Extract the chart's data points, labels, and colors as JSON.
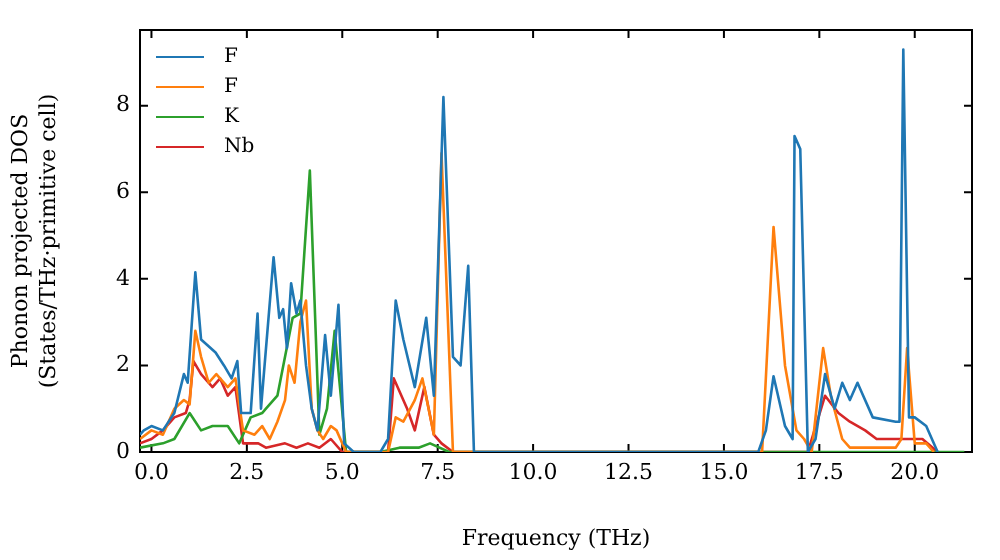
{
  "chart_data": {
    "type": "line",
    "xlabel": "Frequency (THz)",
    "ylabel": "Phonon projected DOS\n(States/THz·primitive cell)",
    "xlim": [
      -0.3,
      21.5
    ],
    "ylim": [
      0,
      9.75
    ],
    "xticks": [
      {
        "value": 0,
        "label": "0.0"
      },
      {
        "value": 2.5,
        "label": "2.5"
      },
      {
        "value": 5,
        "label": "5.0"
      },
      {
        "value": 7.5,
        "label": "7.5"
      },
      {
        "value": 10,
        "label": "10.0"
      },
      {
        "value": 12.5,
        "label": "12.5"
      },
      {
        "value": 15,
        "label": "15.0"
      },
      {
        "value": 17.5,
        "label": "17.5"
      },
      {
        "value": 20,
        "label": "20.0"
      }
    ],
    "yticks": [
      0,
      2,
      4,
      6,
      8
    ],
    "legend": "top left",
    "grid": false,
    "marker": "none",
    "line_style": "solid",
    "series": [
      {
        "name": "F",
        "color": "#1f77b4",
        "x": [
          -0.3,
          -0.2,
          0.0,
          0.3,
          0.6,
          0.85,
          0.95,
          1.15,
          1.3,
          1.68,
          1.9,
          2.1,
          2.25,
          2.35,
          2.6,
          2.78,
          2.87,
          3.2,
          3.35,
          3.45,
          3.55,
          3.66,
          3.8,
          3.9,
          4.05,
          4.2,
          4.35,
          4.55,
          4.7,
          4.9,
          5.05,
          5.3,
          6.0,
          6.2,
          6.4,
          6.6,
          6.9,
          7.2,
          7.4,
          7.65,
          7.9,
          8.1,
          8.3,
          8.45,
          15.9,
          16.1,
          16.3,
          16.6,
          16.8,
          16.85,
          17.0,
          17.2,
          17.4,
          17.65,
          17.9,
          18.1,
          18.3,
          18.5,
          18.6,
          18.9,
          19.5,
          19.6,
          19.7,
          19.85,
          20.0,
          20.3,
          20.6
        ],
        "values": [
          0.4,
          0.5,
          0.6,
          0.5,
          0.9,
          1.8,
          1.6,
          4.15,
          2.6,
          2.3,
          2.0,
          1.7,
          2.1,
          0.9,
          0.9,
          3.2,
          1.0,
          4.5,
          3.1,
          3.3,
          2.4,
          3.9,
          3.2,
          3.5,
          2.0,
          1.0,
          0.5,
          2.7,
          1.3,
          3.4,
          0.2,
          0,
          0,
          0.3,
          3.5,
          2.6,
          1.5,
          3.1,
          1.3,
          8.2,
          2.2,
          2.0,
          4.3,
          0,
          0,
          0.5,
          1.75,
          0.6,
          0.3,
          7.3,
          7.0,
          0,
          0.3,
          1.8,
          1.0,
          1.6,
          1.2,
          1.6,
          1.4,
          0.8,
          0.7,
          0.7,
          9.3,
          0.8,
          0.8,
          0.6,
          0
        ]
      },
      {
        "name": "F",
        "color": "#ff7f0e",
        "x": [
          -0.3,
          0.0,
          0.3,
          0.6,
          0.85,
          1.0,
          1.15,
          1.3,
          1.5,
          1.7,
          2.0,
          2.2,
          2.4,
          2.7,
          2.9,
          3.1,
          3.3,
          3.5,
          3.6,
          3.75,
          3.9,
          4.05,
          4.2,
          4.35,
          4.5,
          4.7,
          4.85,
          5.1,
          6.0,
          6.2,
          6.4,
          6.6,
          6.9,
          7.1,
          7.4,
          7.6,
          7.9,
          10.0,
          16.0,
          16.3,
          16.6,
          16.9,
          17.1,
          17.3,
          17.6,
          17.8,
          18.1,
          18.3,
          19.5,
          19.65,
          19.8,
          20.0,
          20.3,
          20.5
        ],
        "values": [
          0.3,
          0.5,
          0.4,
          1.0,
          1.2,
          1.1,
          2.8,
          2.2,
          1.6,
          1.8,
          1.5,
          1.7,
          0.5,
          0.4,
          0.6,
          0.3,
          0.7,
          1.2,
          2.0,
          1.6,
          3.0,
          3.5,
          1.0,
          0.5,
          0.3,
          0.6,
          0.5,
          0,
          0,
          0,
          0.8,
          0.7,
          1.2,
          1.7,
          0.4,
          6.9,
          0,
          0,
          0,
          5.2,
          2.0,
          0.5,
          0.3,
          0,
          2.4,
          1.3,
          0.3,
          0.1,
          0.1,
          0.3,
          2.4,
          0.2,
          0.2,
          0
        ]
      },
      {
        "name": "K",
        "color": "#2ca02c",
        "x": [
          -0.3,
          0.3,
          0.6,
          1.0,
          1.3,
          1.6,
          2.0,
          2.3,
          2.6,
          2.9,
          3.0,
          3.3,
          3.7,
          3.9,
          4.15,
          4.4,
          4.6,
          4.8,
          5.1,
          6.0,
          6.5,
          7.0,
          7.3,
          7.8,
          21.3
        ],
        "values": [
          0.1,
          0.2,
          0.3,
          0.9,
          0.5,
          0.6,
          0.6,
          0.2,
          0.8,
          0.9,
          1.0,
          1.3,
          3.1,
          3.2,
          6.5,
          0.4,
          1.0,
          2.8,
          0,
          0,
          0.1,
          0.1,
          0.2,
          0,
          0
        ]
      },
      {
        "name": "Nb",
        "color": "#d62728",
        "x": [
          -0.3,
          0.0,
          0.3,
          0.6,
          0.9,
          1.0,
          1.1,
          1.3,
          1.6,
          1.8,
          2.0,
          2.2,
          2.4,
          2.8,
          3.0,
          3.5,
          3.8,
          4.1,
          4.4,
          4.7,
          5.0,
          6.0,
          6.2,
          6.35,
          6.7,
          6.9,
          7.15,
          7.4,
          7.6,
          7.9,
          17.2,
          17.65,
          18.0,
          18.3,
          18.7,
          19.0,
          20.2,
          20.6
        ],
        "values": [
          0.2,
          0.3,
          0.5,
          0.8,
          0.9,
          1.2,
          2.1,
          1.8,
          1.5,
          1.7,
          1.3,
          1.5,
          0.2,
          0.2,
          0.1,
          0.2,
          0.1,
          0.2,
          0.1,
          0.3,
          0,
          0,
          0,
          1.7,
          1.0,
          0.5,
          1.5,
          0.4,
          0.2,
          0,
          0,
          1.3,
          0.9,
          0.7,
          0.5,
          0.3,
          0.3,
          0
        ]
      }
    ]
  }
}
